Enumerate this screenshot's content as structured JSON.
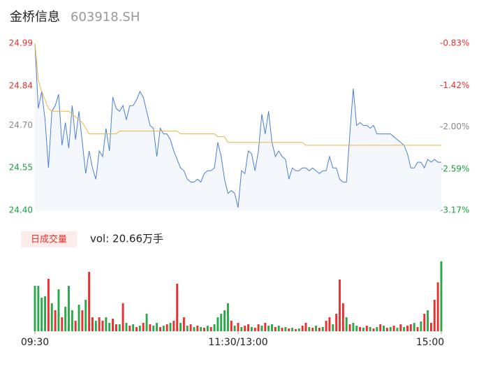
{
  "chart_data": {
    "type": "line",
    "title": "金桥信息",
    "subtitle": "603918.SH",
    "x": [
      0,
      2,
      4,
      6,
      8,
      10,
      12,
      14,
      16,
      18,
      20,
      22,
      24,
      26,
      28,
      30,
      32,
      34,
      36,
      38,
      40,
      42,
      44,
      46,
      48,
      50,
      52,
      54,
      56,
      58,
      60,
      62,
      64,
      66,
      68,
      70,
      72,
      74,
      76,
      78,
      80,
      82,
      84,
      86,
      88,
      90,
      92,
      94,
      96,
      98,
      100,
      102,
      104,
      106,
      108,
      110,
      112,
      114,
      116,
      118,
      120,
      122,
      124,
      126,
      128,
      130,
      132,
      134,
      136,
      138,
      140,
      142,
      144,
      146,
      148,
      150,
      152,
      154,
      156,
      158,
      160,
      162,
      164,
      166,
      168,
      170,
      172,
      174,
      176,
      178,
      180,
      182,
      184,
      186,
      188,
      190,
      192,
      194,
      196,
      198,
      200,
      202,
      204,
      206,
      208,
      210,
      212,
      214,
      216,
      218,
      220,
      222,
      224,
      226,
      228,
      230,
      232,
      234,
      236,
      238,
      240
    ],
    "xlim": [
      0,
      240
    ],
    "xticks": [
      {
        "value": 0,
        "label": "09:30"
      },
      {
        "value": 120,
        "label": "11:30/13:00"
      },
      {
        "value": 240,
        "label": "15:00"
      }
    ],
    "ylim": [
      24.4,
      24.99
    ],
    "yticks": [
      {
        "value": 24.4,
        "label": "24.40"
      },
      24.55,
      {
        "value": 24.7,
        "label": "24.70"
      },
      24.84,
      24.99
    ],
    "ytick_colors": [
      "#1a9e3f",
      "#1a9e3f",
      "#888888",
      "#e8312f",
      "#e8312f"
    ],
    "y2lim": [
      -3.17,
      -0.83
    ],
    "y2ticks": [
      {
        "value": -3.17,
        "label": "-3.17%"
      },
      {
        "value": -2.59,
        "label": "-2.59%"
      },
      {
        "value": -2.0,
        "label": "-2.00%"
      },
      {
        "value": -1.42,
        "label": "-1.42%"
      },
      {
        "value": -0.83,
        "label": "-0.83%"
      }
    ],
    "y2tick_colors": [
      "#1a9e3f",
      "#1a9e3f",
      "#888888",
      "#e8312f",
      "#e8312f"
    ],
    "area_color": "#f4f7fc",
    "series": [
      {
        "color": "#4a7fd8",
        "values": [
          24.99,
          24.76,
          24.82,
          24.72,
          24.55,
          24.75,
          24.77,
          24.81,
          24.63,
          24.71,
          24.62,
          24.77,
          24.65,
          24.75,
          24.64,
          24.53,
          24.61,
          24.55,
          24.51,
          24.61,
          24.59,
          24.69,
          24.61,
          24.8,
          24.76,
          24.75,
          24.77,
          24.72,
          24.77,
          24.77,
          24.79,
          24.82,
          24.8,
          24.75,
          24.7,
          24.69,
          24.59,
          24.69,
          24.67,
          24.67,
          24.65,
          24.61,
          24.58,
          24.55,
          24.54,
          24.51,
          24.5,
          24.5,
          24.51,
          24.5,
          24.53,
          24.54,
          24.54,
          24.55,
          24.64,
          24.59,
          24.51,
          24.46,
          24.47,
          24.46,
          24.41,
          24.54,
          24.53,
          24.61,
          24.6,
          24.54,
          24.61,
          24.74,
          24.67,
          24.75,
          24.64,
          24.59,
          24.61,
          24.59,
          24.58,
          24.51,
          24.55,
          24.54,
          24.54,
          24.55,
          24.55,
          24.54,
          24.55,
          24.54,
          24.53,
          24.54,
          24.54,
          24.59,
          24.55,
          24.55,
          24.51,
          24.5,
          24.5,
          24.67,
          24.83,
          24.7,
          24.71,
          24.7,
          24.7,
          24.69,
          24.7,
          24.67,
          24.67,
          24.67,
          24.67,
          24.67,
          24.66,
          24.65,
          24.64,
          24.63,
          24.6,
          24.55,
          24.55,
          24.57,
          24.57,
          24.55,
          24.58,
          24.57,
          24.58,
          24.57,
          24.57
        ]
      },
      {
        "color": "#f0b43c",
        "values": [
          24.99,
          24.86,
          24.82,
          24.79,
          24.76,
          24.75,
          24.75,
          24.75,
          24.75,
          24.75,
          24.75,
          24.74,
          24.73,
          24.72,
          24.71,
          24.69,
          24.67,
          24.67,
          24.67,
          24.67,
          24.67,
          24.67,
          24.67,
          24.67,
          24.67,
          24.68,
          24.68,
          24.68,
          24.68,
          24.68,
          24.68,
          24.68,
          24.68,
          24.68,
          24.68,
          24.68,
          24.68,
          24.68,
          24.68,
          24.68,
          24.68,
          24.68,
          24.68,
          24.67,
          24.67,
          24.67,
          24.67,
          24.67,
          24.67,
          24.67,
          24.67,
          24.67,
          24.67,
          24.67,
          24.66,
          24.66,
          24.66,
          24.64,
          24.64,
          24.64,
          24.64,
          24.64,
          24.64,
          24.64,
          24.64,
          24.64,
          24.64,
          24.64,
          24.64,
          24.64,
          24.64,
          24.64,
          24.64,
          24.64,
          24.64,
          24.64,
          24.64,
          24.64,
          24.64,
          24.64,
          24.63,
          24.63,
          24.63,
          24.63,
          24.63,
          24.63,
          24.63,
          24.63,
          24.63,
          24.63,
          24.63,
          24.63,
          24.63,
          24.63,
          24.63,
          24.63,
          24.63,
          24.63,
          24.63,
          24.63,
          24.63,
          24.63,
          24.63,
          24.63,
          24.63,
          24.63,
          24.63,
          24.63,
          24.63,
          24.63,
          24.63,
          24.63,
          24.63,
          24.63,
          24.63,
          24.63,
          24.63,
          24.63,
          24.63,
          24.63,
          24.63
        ]
      }
    ],
    "volume": {
      "label": "日成交量",
      "summary": "vol: 20.66万手",
      "vlim": [
        0,
        100
      ],
      "color_map": {
        "r": "#e8312f",
        "g": "#2aa84a"
      },
      "values": [
        65,
        65,
        48,
        50,
        75,
        40,
        30,
        60,
        20,
        35,
        65,
        30,
        15,
        38,
        30,
        45,
        85,
        20,
        15,
        20,
        15,
        20,
        12,
        18,
        10,
        10,
        40,
        12,
        8,
        10,
        6,
        8,
        12,
        25,
        10,
        8,
        12,
        6,
        8,
        10,
        12,
        15,
        68,
        12,
        20,
        8,
        10,
        6,
        8,
        6,
        5,
        8,
        6,
        10,
        20,
        25,
        30,
        40,
        15,
        8,
        12,
        6,
        8,
        10,
        6,
        5,
        10,
        8,
        12,
        8,
        10,
        6,
        8,
        5,
        6,
        4,
        5,
        3,
        4,
        8,
        12,
        6,
        5,
        8,
        5,
        6,
        15,
        20,
        10,
        25,
        74,
        40,
        20,
        10,
        12,
        8,
        6,
        5,
        8,
        6,
        4,
        6,
        10,
        8,
        5,
        6,
        8,
        5,
        10,
        6,
        8,
        10,
        12,
        6,
        14,
        25,
        30,
        12,
        45,
        70,
        100
      ],
      "colors": [
        "g",
        "g",
        "g",
        "g",
        "r",
        "g",
        "r",
        "g",
        "r",
        "g",
        "g",
        "g",
        "r",
        "g",
        "r",
        "g",
        "r",
        "r",
        "g",
        "r",
        "r",
        "g",
        "g",
        "r",
        "r",
        "g",
        "r",
        "g",
        "r",
        "g",
        "r",
        "g",
        "r",
        "g",
        "r",
        "g",
        "g",
        "r",
        "g",
        "r",
        "g",
        "r",
        "r",
        "g",
        "r",
        "g",
        "r",
        "g",
        "r",
        "g",
        "r",
        "g",
        "r",
        "g",
        "g",
        "g",
        "g",
        "g",
        "r",
        "g",
        "r",
        "g",
        "r",
        "r",
        "g",
        "r",
        "r",
        "g",
        "r",
        "g",
        "g",
        "r",
        "g",
        "r",
        "g",
        "r",
        "g",
        "r",
        "g",
        "r",
        "r",
        "g",
        "r",
        "g",
        "r",
        "g",
        "r",
        "r",
        "g",
        "r",
        "r",
        "r",
        "g",
        "r",
        "g",
        "g",
        "r",
        "g",
        "r",
        "g",
        "r",
        "g",
        "r",
        "g",
        "r",
        "g",
        "r",
        "g",
        "r",
        "g",
        "r",
        "r",
        "g",
        "r",
        "g",
        "r",
        "g",
        "r",
        "r",
        "r",
        "g"
      ]
    }
  }
}
